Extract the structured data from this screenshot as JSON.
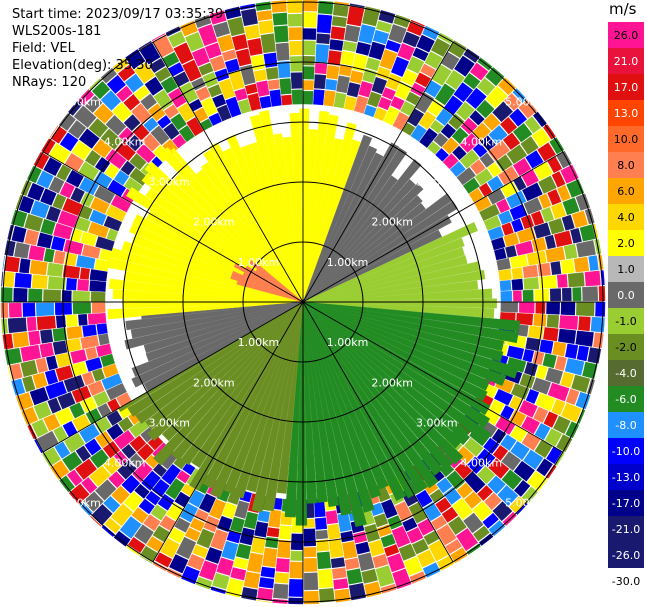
{
  "info": {
    "start_time": "Start time: 2023/09/17 03:35:39",
    "instrument": "WLS200s-181",
    "field": "Field: VEL",
    "elevation": "Elevation(deg): 35.30",
    "nrays": "NRays: 120"
  },
  "colorbar": {
    "unit": "m/s",
    "levels": [
      {
        "label": "26.0",
        "color": "#ff1493"
      },
      {
        "label": "21.0",
        "color": "#e8123c"
      },
      {
        "label": "17.0",
        "color": "#e01010"
      },
      {
        "label": "13.0",
        "color": "#ff4500"
      },
      {
        "label": "10.0",
        "color": "#ff6a2a"
      },
      {
        "label": "8.0",
        "color": "#ff7f50"
      },
      {
        "label": "6.0",
        "color": "#ffa500"
      },
      {
        "label": "4.0",
        "color": "#ffd700"
      },
      {
        "label": "2.0",
        "color": "#ffff00"
      },
      {
        "label": "1.0",
        "color": "#b8b8b8"
      },
      {
        "label": "0.0",
        "color": "#696969"
      },
      {
        "label": "-1.0",
        "color": "#9acd32"
      },
      {
        "label": "-2.0",
        "color": "#6b8e23"
      },
      {
        "label": "-4.0",
        "color": "#556b2f"
      },
      {
        "label": "-6.0",
        "color": "#228b22"
      },
      {
        "label": "-8.0",
        "color": "#1e90ff"
      },
      {
        "label": "-10.0",
        "color": "#0000ff"
      },
      {
        "label": "-13.0",
        "color": "#0000cd"
      },
      {
        "label": "-17.0",
        "color": "#00008b"
      },
      {
        "label": "-21.0",
        "color": "#191970"
      },
      {
        "label": "-26.0",
        "color": "#191970"
      },
      {
        "label": "-30.0",
        "color": "#ffffff"
      }
    ]
  },
  "chart_data": {
    "type": "heatmap",
    "projection": "polar (PPI)",
    "field": "VEL",
    "n_rays": 120,
    "range_rings_km": [
      1,
      2,
      3,
      4,
      5
    ],
    "ring_labels": [
      "1.00km",
      "2.00km",
      "3.00km",
      "4.00km",
      "5.00km"
    ],
    "spokes_deg": [
      0,
      30,
      60,
      90,
      120,
      150,
      180,
      210,
      240,
      270,
      300,
      330
    ],
    "sectors": [
      {
        "from_deg": -95,
        "to_deg": -40,
        "max_km": 3.2,
        "value": 2.0
      },
      {
        "from_deg": -75,
        "to_deg": -50,
        "max_km": 1.1,
        "value": 8.0
      },
      {
        "from_deg": -40,
        "to_deg": 20,
        "max_km": 3.0,
        "value": 2.0
      },
      {
        "from_deg": 20,
        "to_deg": 65,
        "max_km": 2.8,
        "value": 0.0
      },
      {
        "from_deg": 65,
        "to_deg": 95,
        "max_km": 3.0,
        "value": -1.0
      },
      {
        "from_deg": 95,
        "to_deg": 185,
        "max_km": 3.6,
        "value": -6.0
      },
      {
        "from_deg": 185,
        "to_deg": 240,
        "max_km": 3.4,
        "value": -2.0
      },
      {
        "from_deg": 240,
        "to_deg": 265,
        "max_km": 2.9,
        "value": 0.0
      }
    ],
    "noise_beyond_km": 3.3
  }
}
